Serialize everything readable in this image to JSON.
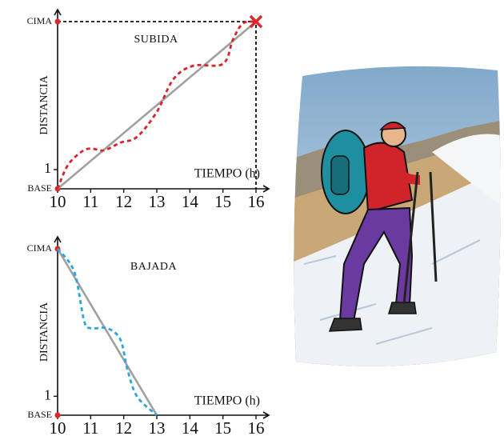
{
  "chart_data": [
    {
      "type": "line",
      "title": "SUBIDA",
      "xlabel": "TIEMPO (h)",
      "ylabel": "DISTANCIA",
      "xlim": [
        10,
        16
      ],
      "xticks": [
        10,
        11,
        12,
        13,
        14,
        15,
        16
      ],
      "ylim": [
        0,
        8.7
      ],
      "yticks": [
        {
          "value": 0,
          "label": "BASE"
        },
        1,
        {
          "value": 8.7,
          "label": "CIMA"
        }
      ],
      "tick_dot_color": "#e0262b",
      "guides": true,
      "end_marker": true,
      "series": [
        {
          "color": "#a0a0a0",
          "style": "solid",
          "x": [
            10,
            16
          ],
          "values": [
            0,
            8.7
          ]
        },
        {
          "color": "#d9232d",
          "style": "dashed",
          "x": [
            10,
            10.3,
            10.7,
            11,
            11.4,
            11.9,
            12.4,
            13,
            13.5,
            14.1,
            15,
            15.3,
            15.6,
            16
          ],
          "values": [
            0,
            1.2,
            1.9,
            2.1,
            2.0,
            2.4,
            2.7,
            4.0,
            5.7,
            6.4,
            6.5,
            7.75,
            8.6,
            8.7
          ]
        }
      ]
    },
    {
      "type": "line",
      "title": "BAJADA",
      "xlabel": "TIEMPO (h)",
      "ylabel": "DISTANCIA",
      "xlim": [
        10,
        16
      ],
      "xticks": [
        10,
        11,
        12,
        13,
        14,
        15,
        16
      ],
      "ylim": [
        0,
        8.8
      ],
      "yticks": [
        {
          "value": 0,
          "label": "BASE"
        },
        1,
        {
          "value": 8.8,
          "label": "CIMA"
        }
      ],
      "tick_dot_color": "#e0262b",
      "guides": false,
      "end_marker": false,
      "series": [
        {
          "color": "#a0a0a0",
          "style": "solid",
          "x": [
            10,
            13
          ],
          "values": [
            8.8,
            0
          ]
        },
        {
          "color": "#2ba6de",
          "style": "dashed",
          "x": [
            10,
            10.5,
            10.8,
            11,
            11.5,
            11.9,
            12.1,
            12.4,
            13
          ],
          "values": [
            8.8,
            7.6,
            5.0,
            4.6,
            4.6,
            4.0,
            2.5,
            1.0,
            0
          ]
        }
      ]
    }
  ]
}
